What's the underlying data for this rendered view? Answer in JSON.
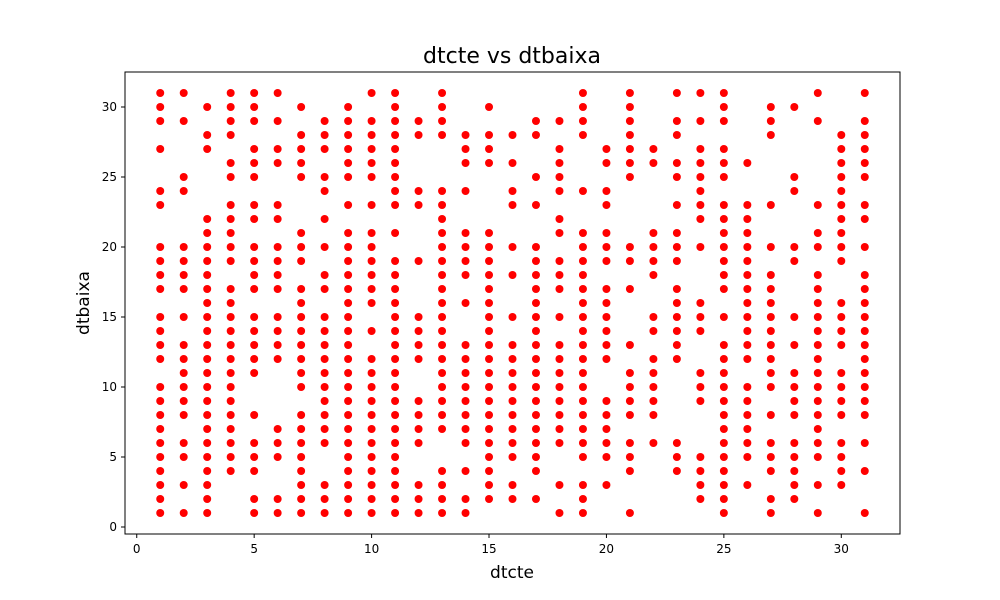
{
  "chart_data": {
    "type": "scatter",
    "title": "dtcte vs dtbaixa",
    "xlabel": "dtcte",
    "ylabel": "dtbaixa",
    "xlim": [
      -0.5,
      32.5
    ],
    "ylim": [
      -0.5,
      32.5
    ],
    "xticks": [
      0,
      5,
      10,
      15,
      20,
      25,
      30
    ],
    "yticks": [
      0,
      5,
      10,
      15,
      20,
      25,
      30
    ],
    "grid": false,
    "legend": "none",
    "marker_color": "#ff0000",
    "series": [
      {
        "points": [
          {
            "x": 1,
            "y": [
              1,
              2,
              3,
              4,
              5,
              6,
              7,
              8,
              9,
              10,
              12,
              13,
              14,
              15,
              17,
              18,
              19,
              20,
              23,
              24,
              27,
              29,
              30,
              31
            ]
          },
          {
            "x": 2,
            "y": [
              1,
              3,
              5,
              6,
              8,
              9,
              10,
              11,
              12,
              13,
              15,
              17,
              18,
              19,
              20,
              24,
              25,
              29,
              31
            ]
          },
          {
            "x": 3,
            "y": [
              1,
              2,
              3,
              4,
              5,
              6,
              7,
              8,
              9,
              10,
              11,
              12,
              13,
              14,
              15,
              16,
              17,
              18,
              19,
              20,
              21,
              22,
              27,
              28,
              30
            ]
          },
          {
            "x": 4,
            "y": [
              4,
              5,
              6,
              7,
              8,
              9,
              10,
              11,
              12,
              13,
              14,
              15,
              16,
              17,
              19,
              20,
              21,
              22,
              23,
              25,
              26,
              28,
              29,
              30,
              31
            ]
          },
          {
            "x": 5,
            "y": [
              1,
              2,
              4,
              5,
              6,
              8,
              11,
              12,
              13,
              14,
              15,
              17,
              18,
              19,
              20,
              22,
              23,
              25,
              26,
              27,
              29,
              30,
              31
            ]
          },
          {
            "x": 6,
            "y": [
              1,
              2,
              5,
              6,
              7,
              12,
              13,
              14,
              15,
              17,
              18,
              19,
              20,
              22,
              23,
              26,
              27,
              29,
              31
            ]
          },
          {
            "x": 7,
            "y": [
              1,
              2,
              3,
              4,
              5,
              6,
              7,
              8,
              10,
              11,
              12,
              13,
              14,
              15,
              16,
              17,
              19,
              20,
              21,
              25,
              26,
              27,
              28,
              30
            ]
          },
          {
            "x": 8,
            "y": [
              1,
              2,
              3,
              6,
              7,
              8,
              9,
              10,
              11,
              12,
              13,
              14,
              15,
              17,
              18,
              20,
              22,
              24,
              25,
              27,
              28,
              29
            ]
          },
          {
            "x": 9,
            "y": [
              1,
              2,
              3,
              4,
              5,
              6,
              7,
              8,
              9,
              10,
              11,
              12,
              13,
              14,
              15,
              16,
              17,
              18,
              19,
              20,
              21,
              23,
              25,
              26,
              27,
              28,
              29,
              30
            ]
          },
          {
            "x": 10,
            "y": [
              1,
              2,
              3,
              4,
              5,
              6,
              7,
              8,
              9,
              10,
              11,
              12,
              14,
              16,
              17,
              18,
              19,
              20,
              21,
              23,
              25,
              26,
              27,
              28,
              29,
              31
            ]
          },
          {
            "x": 11,
            "y": [
              1,
              2,
              3,
              4,
              5,
              6,
              7,
              8,
              9,
              10,
              11,
              12,
              13,
              14,
              15,
              16,
              17,
              18,
              19,
              21,
              23,
              24,
              25,
              26,
              27,
              28,
              29,
              30,
              31
            ]
          },
          {
            "x": 12,
            "y": [
              1,
              2,
              3,
              6,
              7,
              8,
              9,
              12,
              13,
              14,
              15,
              19,
              23,
              24,
              28,
              29
            ]
          },
          {
            "x": 13,
            "y": [
              1,
              2,
              3,
              4,
              7,
              8,
              9,
              10,
              11,
              12,
              13,
              14,
              15,
              16,
              17,
              18,
              19,
              20,
              21,
              22,
              23,
              24,
              28,
              29,
              30,
              31
            ]
          },
          {
            "x": 14,
            "y": [
              1,
              2,
              4,
              6,
              7,
              8,
              9,
              10,
              11,
              12,
              13,
              16,
              18,
              19,
              20,
              21,
              24,
              26,
              27,
              28
            ]
          },
          {
            "x": 15,
            "y": [
              2,
              3,
              4,
              5,
              6,
              7,
              8,
              9,
              10,
              11,
              12,
              13,
              14,
              15,
              16,
              17,
              18,
              19,
              20,
              21,
              26,
              27,
              28,
              30
            ]
          },
          {
            "x": 16,
            "y": [
              2,
              3,
              5,
              6,
              7,
              8,
              9,
              10,
              11,
              12,
              13,
              15,
              18,
              20,
              23,
              24,
              26,
              28
            ]
          },
          {
            "x": 17,
            "y": [
              2,
              4,
              5,
              6,
              7,
              8,
              9,
              10,
              11,
              12,
              13,
              14,
              15,
              16,
              17,
              18,
              19,
              20,
              23,
              25,
              28,
              29
            ]
          },
          {
            "x": 18,
            "y": [
              1,
              3,
              6,
              7,
              8,
              9,
              10,
              11,
              12,
              13,
              15,
              17,
              18,
              19,
              21,
              22,
              24,
              25,
              26,
              27,
              29
            ]
          },
          {
            "x": 19,
            "y": [
              1,
              2,
              3,
              5,
              6,
              7,
              8,
              9,
              10,
              11,
              12,
              13,
              14,
              15,
              16,
              17,
              18,
              19,
              20,
              21,
              24,
              28,
              29,
              30,
              31
            ]
          },
          {
            "x": 20,
            "y": [
              3,
              5,
              6,
              7,
              8,
              9,
              12,
              13,
              14,
              15,
              16,
              17,
              19,
              20,
              21,
              23,
              24,
              26,
              27
            ]
          },
          {
            "x": 21,
            "y": [
              1,
              4,
              5,
              6,
              8,
              9,
              10,
              11,
              13,
              17,
              19,
              20,
              25,
              26,
              27,
              28,
              29,
              30,
              31
            ]
          },
          {
            "x": 22,
            "y": [
              6,
              8,
              9,
              10,
              11,
              12,
              14,
              15,
              18,
              19,
              20,
              21,
              26,
              27
            ]
          },
          {
            "x": 23,
            "y": [
              4,
              5,
              6,
              12,
              13,
              14,
              15,
              16,
              17,
              19,
              20,
              21,
              23,
              25,
              26,
              28,
              29,
              31
            ]
          },
          {
            "x": 24,
            "y": [
              2,
              3,
              4,
              5,
              9,
              10,
              11,
              14,
              15,
              16,
              20,
              22,
              23,
              24,
              25,
              26,
              27,
              29,
              31
            ]
          },
          {
            "x": 25,
            "y": [
              1,
              2,
              3,
              4,
              5,
              6,
              7,
              8,
              9,
              10,
              11,
              12,
              13,
              15,
              17,
              18,
              19,
              20,
              21,
              22,
              23,
              25,
              26,
              27,
              29,
              30,
              31
            ]
          },
          {
            "x": 26,
            "y": [
              3,
              5,
              6,
              7,
              8,
              9,
              10,
              12,
              13,
              14,
              15,
              16,
              17,
              18,
              19,
              20,
              21,
              22,
              23,
              26
            ]
          },
          {
            "x": 27,
            "y": [
              1,
              2,
              4,
              5,
              6,
              8,
              10,
              11,
              12,
              13,
              14,
              15,
              16,
              17,
              18,
              20,
              23,
              28,
              29,
              30
            ]
          },
          {
            "x": 28,
            "y": [
              2,
              3,
              4,
              5,
              6,
              8,
              9,
              10,
              11,
              13,
              15,
              19,
              20,
              24,
              25,
              30
            ]
          },
          {
            "x": 29,
            "y": [
              1,
              3,
              5,
              6,
              7,
              8,
              9,
              10,
              11,
              12,
              13,
              14,
              15,
              16,
              17,
              18,
              20,
              21,
              23,
              29,
              31
            ]
          },
          {
            "x": 30,
            "y": [
              3,
              4,
              5,
              6,
              8,
              9,
              10,
              11,
              13,
              14,
              15,
              16,
              19,
              20,
              21,
              22,
              23,
              24,
              25,
              26,
              27,
              28
            ]
          },
          {
            "x": 31,
            "y": [
              1,
              4,
              6,
              8,
              9,
              10,
              11,
              12,
              13,
              14,
              15,
              16,
              17,
              18,
              20,
              22,
              23,
              25,
              26,
              27,
              28,
              29,
              31
            ]
          }
        ]
      }
    ]
  }
}
